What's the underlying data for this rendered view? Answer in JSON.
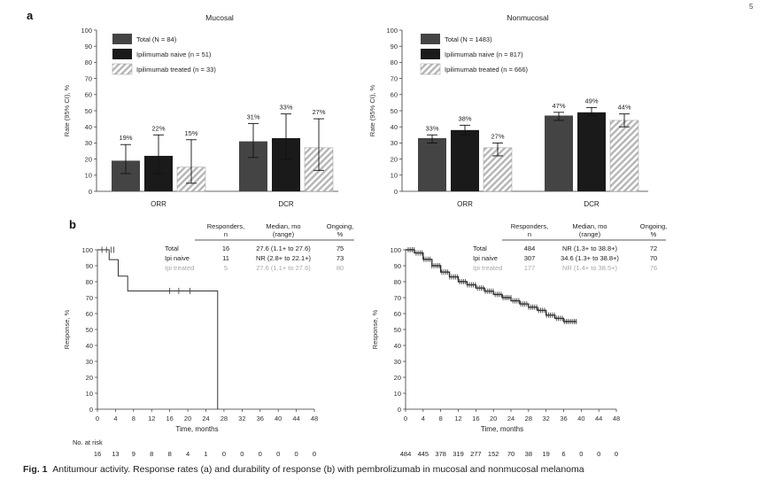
{
  "page_mark": "5",
  "panel_a_label": "a",
  "panel_b_label": "b",
  "caption": {
    "prefix": "Fig. 1",
    "text": "Antitumour activity. Response rates (a) and durability of response (b) with pembrolizumab in mucosal and nonmucosal melanoma"
  },
  "colors": {
    "total": "#444444",
    "naive": "#1a1a1a",
    "treated": "#bdbdbd",
    "km": "#333333"
  },
  "chart_data": [
    {
      "id": "bar-mucosal",
      "type": "bar",
      "title": "Mucosal",
      "ylabel": "Rate (95% CI), %",
      "ylim": [
        0,
        100
      ],
      "yticks": [
        0,
        10,
        20,
        30,
        40,
        50,
        60,
        70,
        80,
        90,
        100
      ],
      "categories": [
        "ORR",
        "DCR"
      ],
      "series": [
        {
          "name": "Total (N = 84)",
          "key": "total",
          "values": [
            19,
            31
          ],
          "ci_low": [
            11,
            21
          ],
          "ci_high": [
            29,
            42
          ],
          "labels": [
            "19%",
            "31%"
          ]
        },
        {
          "name": "Ipilimumab naive (n = 51)",
          "key": "naive",
          "values": [
            22,
            33
          ],
          "ci_low": [
            11,
            20
          ],
          "ci_high": [
            35,
            48
          ],
          "labels": [
            "22%",
            "33%"
          ]
        },
        {
          "name": "Ipilimumab treated (n = 33)",
          "key": "treated",
          "values": [
            15,
            27
          ],
          "ci_low": [
            5,
            13
          ],
          "ci_high": [
            32,
            45
          ],
          "labels": [
            "15%",
            "27%"
          ]
        }
      ]
    },
    {
      "id": "bar-nonmucosal",
      "type": "bar",
      "title": "Nonmucosal",
      "ylabel": "Rate (95% CI), %",
      "ylim": [
        0,
        100
      ],
      "yticks": [
        0,
        10,
        20,
        30,
        40,
        50,
        60,
        70,
        80,
        90,
        100
      ],
      "categories": [
        "ORR",
        "DCR"
      ],
      "series": [
        {
          "name": "Total (N = 1483)",
          "key": "total",
          "values": [
            33,
            47
          ],
          "ci_low": [
            30,
            44
          ],
          "ci_high": [
            35,
            49
          ],
          "labels": [
            "33%",
            "47%"
          ]
        },
        {
          "name": "Ipilimumab naive (n = 817)",
          "key": "naive",
          "values": [
            38,
            49
          ],
          "ci_low": [
            35,
            47
          ],
          "ci_high": [
            41,
            52
          ],
          "labels": [
            "38%",
            "49%"
          ]
        },
        {
          "name": "Ipilimumab treated (n = 666)",
          "key": "treated",
          "values": [
            27,
            44
          ],
          "ci_low": [
            22,
            40
          ],
          "ci_high": [
            30,
            48
          ],
          "labels": [
            "27%",
            "44%"
          ]
        }
      ]
    },
    {
      "id": "km-mucosal",
      "type": "line",
      "xlabel": "Time, months",
      "ylabel": "Response, %",
      "xlim": [
        0,
        48
      ],
      "ylim": [
        0,
        100
      ],
      "xticks": [
        0,
        4,
        8,
        12,
        16,
        20,
        24,
        28,
        32,
        36,
        40,
        44,
        48
      ],
      "yticks": [
        0,
        10,
        20,
        30,
        40,
        50,
        60,
        70,
        80,
        90,
        100
      ],
      "series": [
        {
          "name": "Total",
          "x": [
            0,
            2.6,
            4.6,
            6.7,
            26.6,
            26.6
          ],
          "y": [
            100,
            93.8,
            83.5,
            74.2,
            74.2,
            0
          ]
        }
      ],
      "censored": [
        1,
        2,
        3,
        3.6,
        16,
        18,
        20.5
      ],
      "censor_y": [
        100,
        100,
        100,
        100,
        74.2,
        74.2,
        74.2
      ],
      "table": {
        "headers": [
          [
            "Responders,",
            "n"
          ],
          [
            "Median, mo",
            "(range)"
          ],
          [
            "Ongoing,",
            "%"
          ]
        ],
        "rows": [
          {
            "label": "Total",
            "n": "16",
            "median": "27.6 (1.1+ to 27.6)",
            "ongoing": "75",
            "muted": false
          },
          {
            "label": "Ipi naive",
            "n": "11",
            "median": "NR (2.8+ to 22.1+)",
            "ongoing": "73",
            "muted": false
          },
          {
            "label": "Ipi treated",
            "n": "5",
            "median": "27.6 (1.1+ to 27.6)",
            "ongoing": "80",
            "muted": true
          }
        ]
      },
      "at_risk_label": "No. at risk",
      "at_risk": [
        "16",
        "13",
        "9",
        "8",
        "8",
        "4",
        "1",
        "0",
        "0",
        "0",
        "0",
        "0",
        "0"
      ]
    },
    {
      "id": "km-nonmucosal",
      "type": "line",
      "xlabel": "Time, months",
      "ylabel": "Response, %",
      "xlim": [
        0,
        48
      ],
      "ylim": [
        0,
        100
      ],
      "xticks": [
        0,
        4,
        8,
        12,
        16,
        20,
        24,
        28,
        32,
        36,
        40,
        44,
        48
      ],
      "yticks": [
        0,
        10,
        20,
        30,
        40,
        50,
        60,
        70,
        80,
        90,
        100
      ],
      "series": [
        {
          "name": "Total",
          "x": [
            0,
            2,
            4,
            6,
            8,
            10,
            12,
            14,
            16,
            18,
            20,
            22,
            24,
            26,
            28,
            30,
            32,
            34,
            36,
            38,
            39
          ],
          "y": [
            100,
            98,
            94,
            90,
            86,
            83,
            80,
            78,
            76,
            74,
            72,
            70,
            68,
            66,
            64,
            62,
            59,
            57,
            55,
            55,
            55
          ]
        }
      ],
      "censor_every": 0.45,
      "table": {
        "headers": [
          [
            "Responders,",
            "n"
          ],
          [
            "Median, mo",
            "(range)"
          ],
          [
            "Ongoing,",
            "%"
          ]
        ],
        "rows": [
          {
            "label": "Total",
            "n": "484",
            "median": "NR (1.3+ to 38.8+)",
            "ongoing": "72",
            "muted": false
          },
          {
            "label": "Ipi naive",
            "n": "307",
            "median": "34.6 (1.3+ to 38.8+)",
            "ongoing": "70",
            "muted": false
          },
          {
            "label": "Ipi treated",
            "n": "177",
            "median": "NR (1.4+ to 38.5+)",
            "ongoing": "76",
            "muted": true
          }
        ]
      },
      "at_risk": [
        "484",
        "445",
        "378",
        "319",
        "277",
        "152",
        "70",
        "38",
        "19",
        "6",
        "0",
        "0",
        "0"
      ]
    }
  ]
}
